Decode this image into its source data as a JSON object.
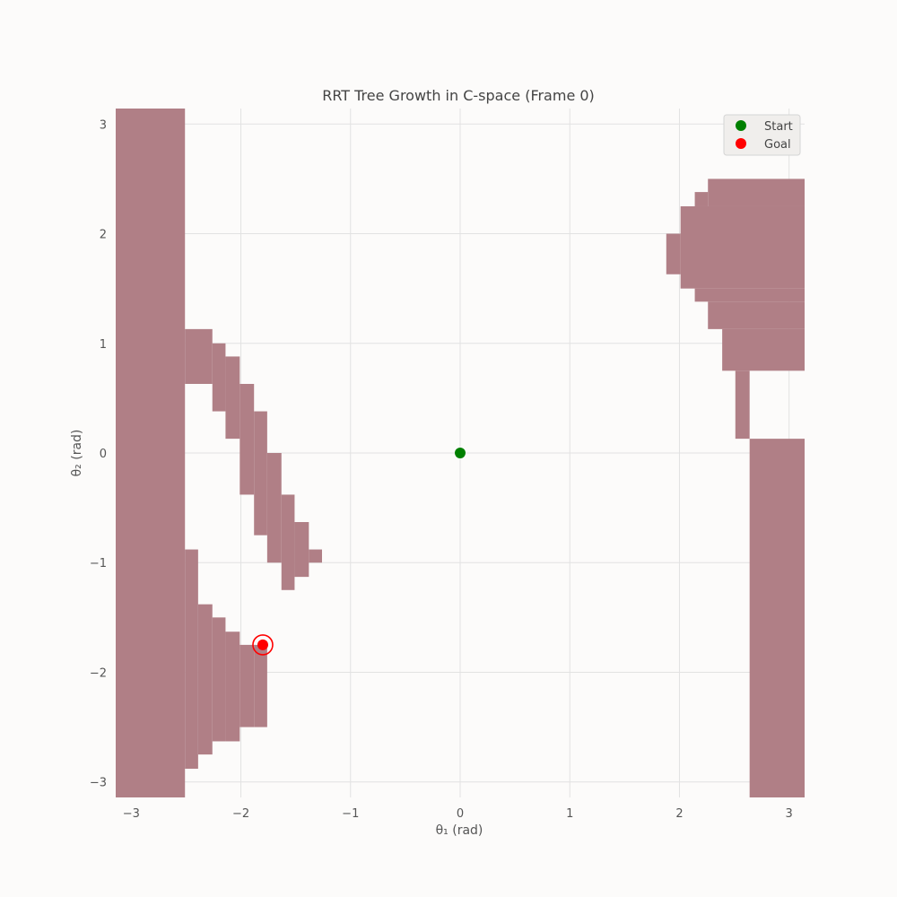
{
  "chart_data": {
    "type": "scatter",
    "title": "RRT Tree Growth in C-space (Frame 0)",
    "xlabel": "θ₁ (rad)",
    "ylabel": "θ₂ (rad)",
    "xlim": [
      -3.1416,
      3.1416
    ],
    "ylim": [
      -3.1416,
      3.1416
    ],
    "xticks": [
      -3,
      -2,
      -1,
      0,
      1,
      2,
      3
    ],
    "yticks": [
      -3,
      -2,
      -1,
      0,
      1,
      2,
      3
    ],
    "xtick_labels": [
      "−3",
      "−2",
      "−1",
      "0",
      "1",
      "2",
      "3"
    ],
    "ytick_labels": [
      "−3",
      "−2",
      "−1",
      "0",
      "1",
      "2",
      "3"
    ],
    "grid": true,
    "legend_position": "top-right",
    "obstacle_color": "#b07f86",
    "series": [
      {
        "name": "Start",
        "color": "#008000",
        "points": [
          [
            0.0,
            0.0
          ]
        ]
      },
      {
        "name": "Goal",
        "color": "#ff0000",
        "points": [
          [
            -1.8,
            -1.75
          ]
        ]
      }
    ],
    "goal_marker_ring": true,
    "obstacles": [
      [
        -3.1416,
        -2.51,
        -3.1416,
        3.1416
      ],
      [
        -2.51,
        -2.26,
        0.63,
        1.13
      ],
      [
        -2.26,
        -2.14,
        0.38,
        1.0
      ],
      [
        -2.14,
        -2.01,
        0.13,
        0.88
      ],
      [
        -2.01,
        -1.88,
        0.0,
        0.63
      ],
      [
        -2.01,
        -1.88,
        -0.38,
        0.0
      ],
      [
        -1.88,
        -1.76,
        -0.75,
        0.38
      ],
      [
        -1.76,
        -1.63,
        -1.0,
        0.0
      ],
      [
        -1.63,
        -1.51,
        -1.25,
        -0.38
      ],
      [
        -1.51,
        -1.38,
        -1.13,
        -0.63
      ],
      [
        -1.38,
        -1.26,
        -1.0,
        -0.88
      ],
      [
        -2.51,
        -2.39,
        -2.88,
        -0.88
      ],
      [
        -2.39,
        -2.26,
        -2.75,
        -1.38
      ],
      [
        -2.26,
        -2.14,
        -2.63,
        -1.5
      ],
      [
        -2.14,
        -2.01,
        -2.63,
        -1.63
      ],
      [
        -2.01,
        -1.88,
        -2.5,
        -1.75
      ],
      [
        -1.88,
        -1.76,
        -2.5,
        -1.75
      ],
      [
        2.64,
        3.1416,
        -3.1416,
        0.13
      ],
      [
        2.51,
        2.64,
        0.13,
        0.75
      ],
      [
        2.39,
        3.1416,
        0.75,
        1.13
      ],
      [
        2.26,
        3.1416,
        1.13,
        1.38
      ],
      [
        2.14,
        3.1416,
        1.38,
        1.5
      ],
      [
        2.01,
        3.1416,
        1.5,
        2.25
      ],
      [
        1.88,
        2.01,
        1.63,
        2.0
      ],
      [
        2.14,
        2.26,
        2.25,
        2.38
      ],
      [
        2.26,
        3.1416,
        2.25,
        2.5
      ]
    ]
  }
}
